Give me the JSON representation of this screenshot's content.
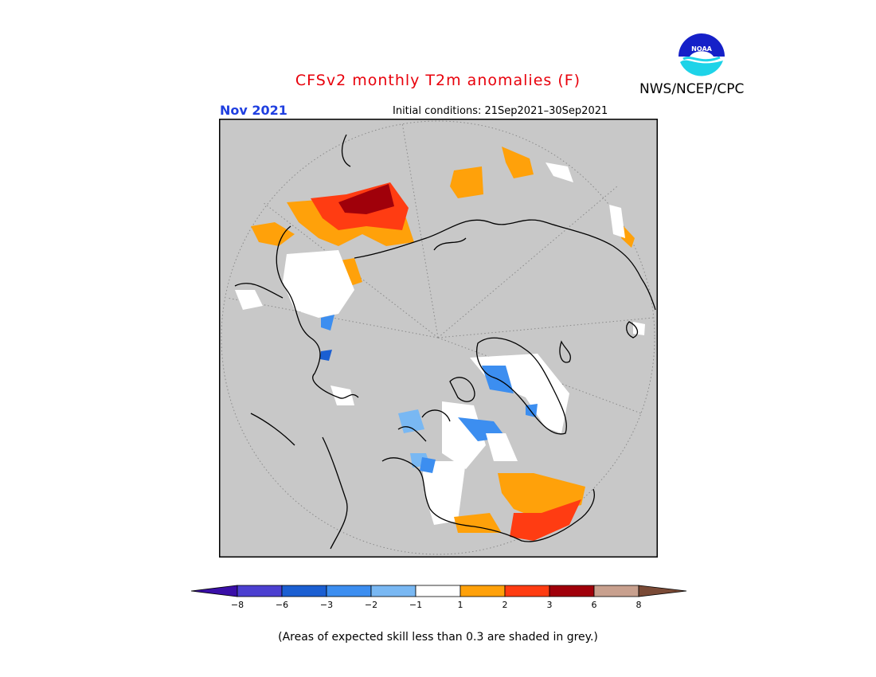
{
  "title": "CFSv2 monthly T2m anomalies (F)",
  "month": "Nov 2021",
  "initial_conditions": "Initial conditions: 21Sep2021–30Sep2021",
  "org": "NWS/NCEP/CPC",
  "logo_text": "NOAA",
  "footnote": "(Areas of expected skill less than 0.3 are shaded in grey.)",
  "colorbar": {
    "labels": [
      "−8",
      "−6",
      "−3",
      "−2",
      "−1",
      "1",
      "2",
      "3",
      "6",
      "8"
    ],
    "colors": [
      "#3a0fa8",
      "#4b3fd0",
      "#1b5fd2",
      "#3c8ef0",
      "#79b8f3",
      "#ffffff",
      "#ffa10a",
      "#ff3c12",
      "#a0000a",
      "#c8a08e",
      "#7a4a36"
    ]
  },
  "colors": {
    "background": "#c8c8c8",
    "coast": "#000000",
    "low_skill": "#c8c8c8",
    "near_normal": "#ffffff"
  }
}
